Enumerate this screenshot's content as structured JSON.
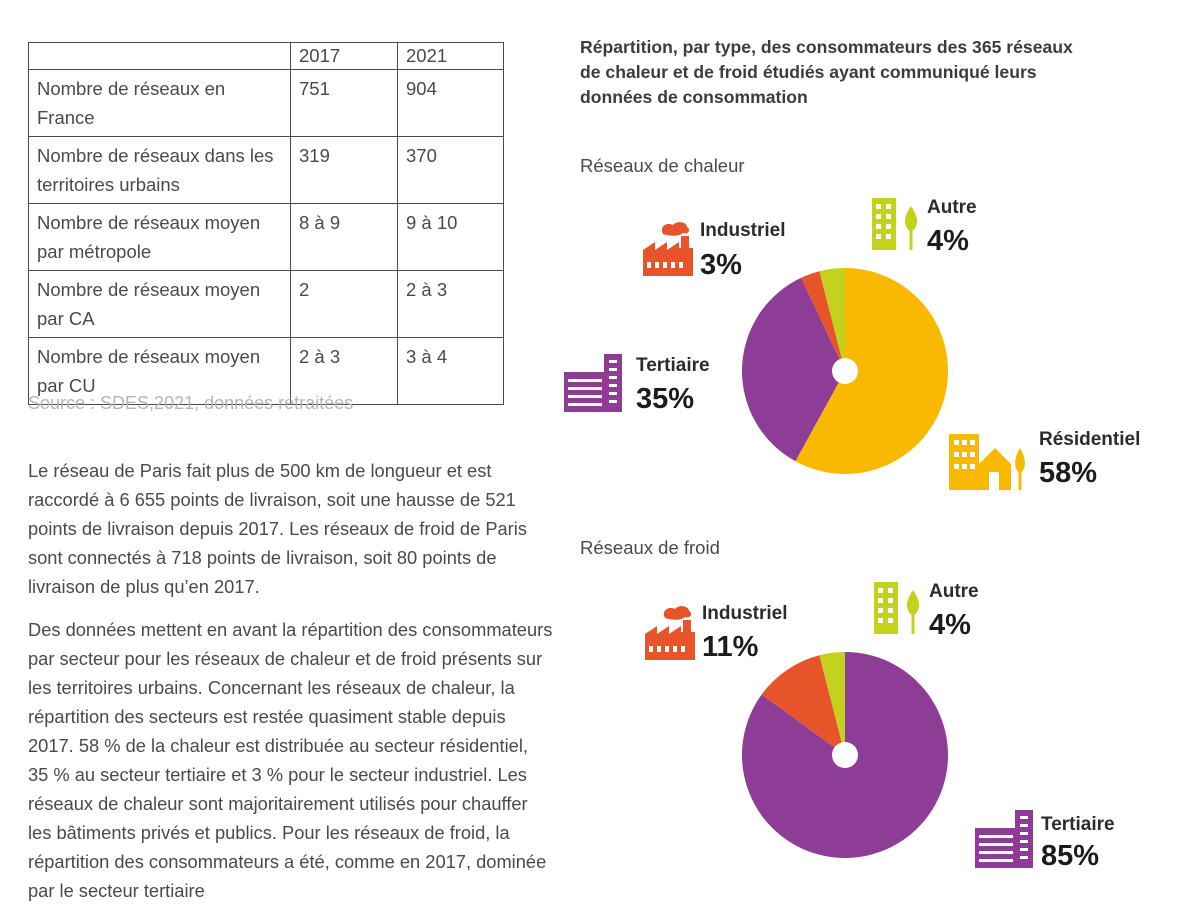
{
  "table": {
    "headers": [
      "",
      "2017",
      "2021"
    ],
    "rows": [
      [
        "Nombre de réseaux en France",
        "751",
        "904"
      ],
      [
        "Nombre de réseaux dans les territoires urbains",
        "319",
        "370"
      ],
      [
        "Nombre de réseaux moyen par métropole",
        "8 à 9",
        "9 à 10"
      ],
      [
        "Nombre de réseaux moyen par CA",
        "2",
        "2 à 3"
      ],
      [
        "Nombre de réseaux moyen par CU",
        "2 à 3",
        "3 à 4"
      ]
    ]
  },
  "source": "Source : SDES,2021, données retraitées",
  "paragraphs": [
    "Le réseau de Paris fait plus de 500 km de longueur et est raccordé à 6 655 points de livraison, soit une hausse de 521 points de livraison depuis 2017. Les réseaux de froid de Paris sont connectés à 718 points de livraison, soit 80 points de livraison de plus qu’en 2017.",
    "Des données mettent en avant la répartition des consommateurs par secteur pour les réseaux de chaleur et de froid présents sur les territoires urbains. Concernant les réseaux de chaleur, la répartition des secteurs est restée quasiment stable depuis 2017. 58 % de la chaleur est distribuée au secteur résidentiel, 35 % au secteur tertiaire et 3 % pour le secteur industriel. Les réseaux de chaleur sont majoritairement utilisés pour chauffer les bâtiments privés et publics. Pour les réseaux de froid, la répartition des consommateurs a été, comme en 2017, dominée par le secteur tertiaire"
  ],
  "figure_title": "Répartition, par type, des consommateurs des 365 réseaux de chaleur et de froid étudiés ayant communiqué leurs données de consommation",
  "colors": {
    "residentiel": "#f9b900",
    "tertiaire": "#8e3d96",
    "industriel": "#e8542a",
    "autre": "#c3d21c"
  },
  "chart_data": [
    {
      "type": "pie",
      "title": "Réseaux de chaleur",
      "categories": [
        "Résidentiel",
        "Tertiaire",
        "Industriel",
        "Autre"
      ],
      "values": [
        58,
        35,
        3,
        4
      ],
      "labels": [
        "58%",
        "35%",
        "3%",
        "4%"
      ],
      "colors": [
        "#f9b900",
        "#8e3d96",
        "#e8542a",
        "#c3d21c"
      ],
      "icons": [
        "residential-icon",
        "office-building-icon",
        "factory-icon",
        "building-tree-icon"
      ]
    },
    {
      "type": "pie",
      "title": "Réseaux de froid",
      "categories": [
        "Tertiaire",
        "Industriel",
        "Autre"
      ],
      "values": [
        85,
        11,
        4
      ],
      "labels": [
        "85%",
        "11%",
        "4%"
      ],
      "colors": [
        "#8e3d96",
        "#e8542a",
        "#c3d21c"
      ],
      "icons": [
        "office-building-icon",
        "factory-icon",
        "building-tree-icon"
      ]
    }
  ]
}
